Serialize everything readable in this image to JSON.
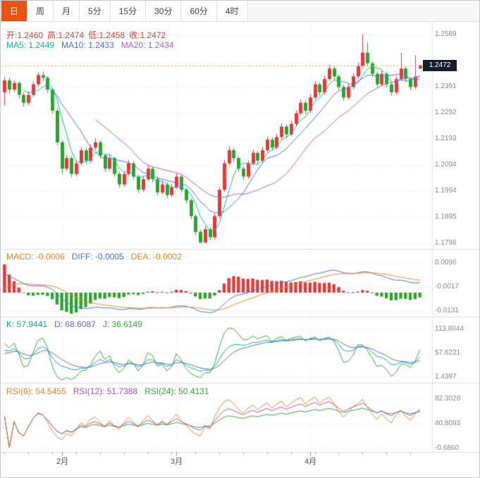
{
  "tabs": {
    "active_index": 0,
    "items": [
      "日",
      "周",
      "月",
      "5分",
      "15分",
      "30分",
      "60分",
      "4时"
    ]
  },
  "main_panel": {
    "ohlc_labels": [
      "开:1.2460",
      "高:1.2474",
      "低:1.2458",
      "收:1.2472"
    ],
    "ma_labels": [
      "MA5: 1.2449",
      "MA10: 1.2433",
      "MA20: 1.2434"
    ],
    "axis_ticks": [
      "1.2589",
      "1.2391",
      "1.2292",
      "1.2193",
      "1.2094",
      "1.1994",
      "1.1895",
      "1.1796"
    ],
    "price_tag": "1.2472"
  },
  "macd_panel": {
    "labels": [
      "MACD: -0.0006",
      "DIFF: -0.0005",
      "DEA: -0.0002"
    ],
    "axis_ticks": [
      "0.0096",
      "-0.0017",
      "-0.0131"
    ]
  },
  "kdj_panel": {
    "labels": [
      "K: 57.9441",
      "D: 68.6087",
      "J: 36.6149"
    ],
    "axis_ticks": [
      "113.8044",
      "57.6221",
      "1.4397"
    ]
  },
  "rsi_panel": {
    "labels": [
      "RSI(6): 54.5455",
      "RSI(12): 51.7388",
      "RSI(24): 50.4131"
    ],
    "axis_ticks": [
      "82.3028",
      "40.8093",
      "-0.6860"
    ]
  },
  "x_axis": {
    "months": [
      {
        "label": "2月",
        "index": 12
      },
      {
        "label": "3月",
        "index": 36
      },
      {
        "label": "4月",
        "index": 64
      }
    ]
  },
  "colors": {
    "up": "#e23a3a",
    "down": "#2ca52c",
    "ma5": "#12b3b3",
    "ma10": "#4a78d2",
    "ma20": "#c45ac4",
    "diff": "#4a78d2",
    "dea": "#e8872e",
    "k": "#18a5a5",
    "d": "#5b6ee1",
    "j": "#3aa83a",
    "rsi6": "#e8872e",
    "rsi12": "#b04fc0",
    "rsi24": "#3aa83a",
    "price_line": "#f0a04a",
    "tag_bg": "#141e2b",
    "tab_active": "#ea5413",
    "grid": "#e7e7e7",
    "separator": "#dcdcdc",
    "axis_text": "#8a8a8a"
  },
  "chart_data": {
    "type": "candlestick",
    "x_unit": "day",
    "price_axis": {
      "max": 1.2589,
      "min": 1.1796,
      "step": 0.0099
    },
    "current_price": 1.2472,
    "ohlc_current": {
      "open": 1.246,
      "high": 1.2474,
      "low": 1.2458,
      "close": 1.2472
    },
    "overlays": [
      {
        "name": "MA5",
        "value": 1.2449
      },
      {
        "name": "MA10",
        "value": 1.2433
      },
      {
        "name": "MA20",
        "value": 1.2434
      }
    ],
    "indicators": [
      {
        "name": "MACD",
        "values": {
          "MACD": -0.0006,
          "DIFF": -0.0005,
          "DEA": -0.0002
        },
        "axis": [
          0.0096,
          -0.0017,
          -0.0131
        ]
      },
      {
        "name": "KDJ",
        "values": {
          "K": 57.9441,
          "D": 68.6087,
          "J": 36.6149
        },
        "axis": [
          113.8044,
          57.6221,
          1.4397
        ]
      },
      {
        "name": "RSI",
        "values": {
          "RSI6": 54.5455,
          "RSI12": 51.7388,
          "RSI24": 50.4131
        },
        "axis": [
          82.3028,
          40.8093,
          -0.686
        ]
      }
    ],
    "candles": [
      [
        1.237,
        1.2428,
        1.232,
        1.2415
      ],
      [
        1.2415,
        1.2425,
        1.2365,
        1.238
      ],
      [
        1.238,
        1.2415,
        1.237,
        1.2405
      ],
      [
        1.2405,
        1.2412,
        1.2345,
        1.236
      ],
      [
        1.236,
        1.237,
        1.2315,
        1.233
      ],
      [
        1.233,
        1.2372,
        1.2322,
        1.236
      ],
      [
        1.236,
        1.241,
        1.2352,
        1.24
      ],
      [
        1.24,
        1.2445,
        1.2392,
        1.2435
      ],
      [
        1.2435,
        1.2448,
        1.2412,
        1.2425
      ],
      [
        1.2425,
        1.2432,
        1.2368,
        1.238
      ],
      [
        1.238,
        1.2388,
        1.229,
        1.23
      ],
      [
        1.23,
        1.2308,
        1.217,
        1.218
      ],
      [
        1.218,
        1.2188,
        1.206,
        1.208
      ],
      [
        1.208,
        1.2132,
        1.2072,
        1.212
      ],
      [
        1.212,
        1.2128,
        1.2048,
        1.206
      ],
      [
        1.206,
        1.2112,
        1.2052,
        1.21
      ],
      [
        1.21,
        1.2162,
        1.2092,
        1.215
      ],
      [
        1.215,
        1.2158,
        1.2098,
        1.211
      ],
      [
        1.211,
        1.2172,
        1.2102,
        1.216
      ],
      [
        1.216,
        1.2195,
        1.215,
        1.218
      ],
      [
        1.218,
        1.2188,
        1.2118,
        1.213
      ],
      [
        1.213,
        1.2138,
        1.2068,
        1.208
      ],
      [
        1.208,
        1.213,
        1.2072,
        1.212
      ],
      [
        1.212,
        1.2126,
        1.205,
        1.206
      ],
      [
        1.206,
        1.2068,
        1.2008,
        1.202
      ],
      [
        1.202,
        1.207,
        1.2012,
        1.206
      ],
      [
        1.206,
        1.2112,
        1.2052,
        1.21
      ],
      [
        1.21,
        1.2108,
        1.204,
        1.205
      ],
      [
        1.205,
        1.2058,
        1.1988,
        1.2
      ],
      [
        1.2,
        1.205,
        1.1992,
        1.204
      ],
      [
        1.204,
        1.2092,
        1.2032,
        1.208
      ],
      [
        1.208,
        1.2088,
        1.2028,
        1.204
      ],
      [
        1.204,
        1.2048,
        1.1978,
        1.199
      ],
      [
        1.199,
        1.2032,
        1.1982,
        1.202
      ],
      [
        1.202,
        1.2028,
        1.1968,
        1.198
      ],
      [
        1.198,
        1.2022,
        1.1972,
        1.201
      ],
      [
        1.201,
        1.2062,
        1.2002,
        1.205
      ],
      [
        1.205,
        1.2058,
        1.199,
        1.2
      ],
      [
        1.2,
        1.2008,
        1.1948,
        1.196
      ],
      [
        1.196,
        1.1968,
        1.1888,
        1.19
      ],
      [
        1.19,
        1.1908,
        1.1828,
        1.184
      ],
      [
        1.184,
        1.1848,
        1.1796,
        1.18
      ],
      [
        1.18,
        1.1862,
        1.1796,
        1.185
      ],
      [
        1.185,
        1.1858,
        1.1808,
        1.182
      ],
      [
        1.182,
        1.191,
        1.1812,
        1.19
      ],
      [
        1.19,
        1.201,
        1.1892,
        1.2
      ],
      [
        1.2,
        1.2112,
        1.1992,
        1.21
      ],
      [
        1.21,
        1.2165,
        1.2092,
        1.215
      ],
      [
        1.215,
        1.2158,
        1.2105,
        1.212
      ],
      [
        1.212,
        1.2128,
        1.2068,
        1.208
      ],
      [
        1.208,
        1.2088,
        1.2038,
        1.205
      ],
      [
        1.205,
        1.211,
        1.2042,
        1.21
      ],
      [
        1.21,
        1.2152,
        1.2092,
        1.214
      ],
      [
        1.214,
        1.2148,
        1.2098,
        1.211
      ],
      [
        1.211,
        1.2162,
        1.2102,
        1.215
      ],
      [
        1.215,
        1.2202,
        1.2142,
        1.219
      ],
      [
        1.219,
        1.2198,
        1.2148,
        1.216
      ],
      [
        1.216,
        1.2212,
        1.2152,
        1.22
      ],
      [
        1.22,
        1.2252,
        1.2192,
        1.224
      ],
      [
        1.224,
        1.2248,
        1.2198,
        1.221
      ],
      [
        1.221,
        1.2262,
        1.2202,
        1.225
      ],
      [
        1.225,
        1.2302,
        1.2242,
        1.229
      ],
      [
        1.229,
        1.2342,
        1.2282,
        1.233
      ],
      [
        1.233,
        1.2338,
        1.2288,
        1.23
      ],
      [
        1.23,
        1.2362,
        1.2292,
        1.235
      ],
      [
        1.235,
        1.2412,
        1.2342,
        1.24
      ],
      [
        1.24,
        1.2408,
        1.2358,
        1.237
      ],
      [
        1.237,
        1.2432,
        1.2362,
        1.242
      ],
      [
        1.242,
        1.2475,
        1.2412,
        1.246
      ],
      [
        1.246,
        1.2468,
        1.2418,
        1.243
      ],
      [
        1.243,
        1.2438,
        1.2378,
        1.239
      ],
      [
        1.239,
        1.2398,
        1.2338,
        1.235
      ],
      [
        1.235,
        1.2402,
        1.2342,
        1.239
      ],
      [
        1.239,
        1.2442,
        1.2382,
        1.243
      ],
      [
        1.243,
        1.2482,
        1.2422,
        1.247
      ],
      [
        1.247,
        1.2589,
        1.2462,
        1.252
      ],
      [
        1.252,
        1.256,
        1.2468,
        1.248
      ],
      [
        1.248,
        1.2488,
        1.2428,
        1.244
      ],
      [
        1.244,
        1.2448,
        1.2388,
        1.24
      ],
      [
        1.24,
        1.2452,
        1.2392,
        1.244
      ],
      [
        1.244,
        1.2448,
        1.2388,
        1.24
      ],
      [
        1.24,
        1.2408,
        1.2358,
        1.237
      ],
      [
        1.237,
        1.2432,
        1.2362,
        1.242
      ],
      [
        1.242,
        1.252,
        1.2412,
        1.246
      ],
      [
        1.246,
        1.2468,
        1.2408,
        1.242
      ],
      [
        1.242,
        1.2428,
        1.2378,
        1.239
      ],
      [
        1.239,
        1.251,
        1.2382,
        1.243
      ],
      [
        1.246,
        1.2474,
        1.2458,
        1.2472
      ]
    ]
  }
}
